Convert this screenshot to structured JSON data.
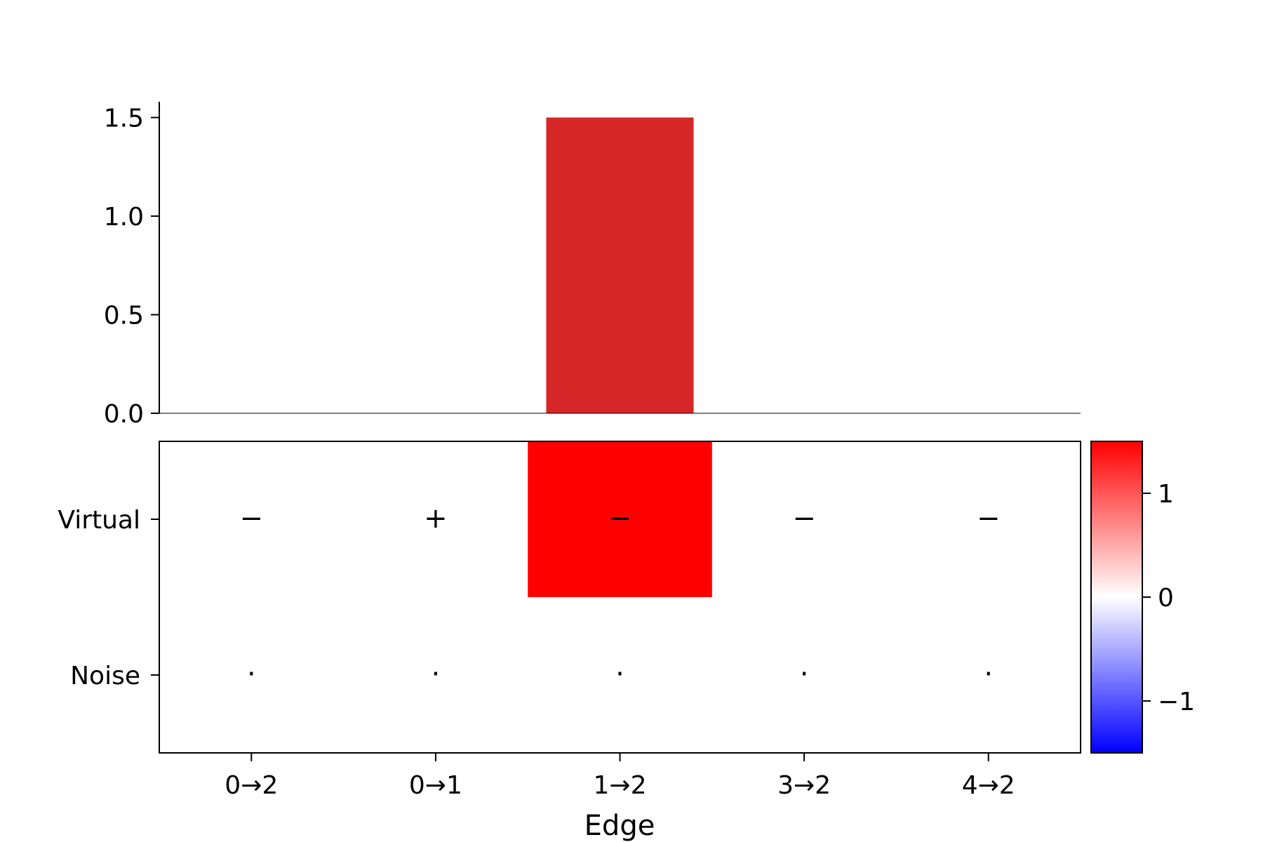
{
  "chart_data": [
    {
      "type": "bar",
      "categories": [
        "0→2",
        "0→1",
        "1→2",
        "3→2",
        "4→2"
      ],
      "values": [
        0,
        0,
        1.5,
        0,
        0
      ],
      "bar_color": "#d62728",
      "y_ticks": [
        "0.0",
        "0.5",
        "1.0",
        "1.5"
      ],
      "ylim": [
        0,
        1.58
      ]
    },
    {
      "type": "heatmap",
      "x_categories": [
        "0→2",
        "0→1",
        "1→2",
        "3→2",
        "4→2"
      ],
      "y_categories": [
        "Virtual",
        "Noise"
      ],
      "values": [
        [
          0,
          0,
          1.5,
          0,
          0
        ],
        [
          0,
          0,
          0,
          0,
          0
        ]
      ],
      "cell_markers": [
        [
          "−",
          "+",
          "−",
          "−",
          "−"
        ],
        [
          "·",
          "·",
          "·",
          "·",
          "·"
        ]
      ],
      "xlabel": "Edge",
      "colormap": "bwr",
      "color_low": "#0000ff",
      "color_mid": "#ffffff",
      "color_high": "#ff0000",
      "clim": [
        -1.5,
        1.5
      ],
      "colorbar_ticks": [
        "1",
        "0",
        "−1"
      ],
      "colorbar_tick_values": [
        1,
        0,
        -1
      ]
    }
  ]
}
